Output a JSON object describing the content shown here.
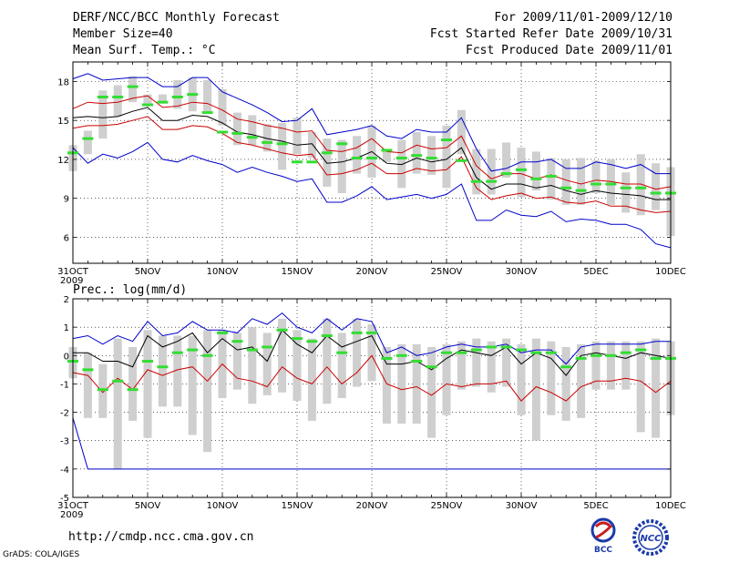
{
  "header": {
    "title": "DERF/NCC/BCC Monthly Forecast",
    "member_size": "Member Size=40",
    "variable": "Mean Surf. Temp.: °C",
    "forecast_period": "For 2009/11/01-2009/12/10",
    "started_refer": "Fcst Started Refer Date 2009/10/31",
    "produced": "Fcst Produced Date 2009/11/01"
  },
  "footer": {
    "url": "http://cmdp.ncc.cma.gov.cn",
    "software": "GrADS: COLA/IGES"
  },
  "logos": {
    "bcc": "BCC",
    "ncc": "NCC"
  },
  "colors": {
    "max_min": "#0000cc",
    "spread": "#cc0000",
    "mean": "#000000",
    "obs": "#33dd33",
    "box": "#cfcfcf"
  },
  "chart_data": [
    {
      "type": "line",
      "title": "Mean Surf. Temp.: °C",
      "x_days": [
        0,
        1,
        2,
        3,
        4,
        5,
        6,
        7,
        8,
        9,
        10,
        11,
        12,
        13,
        14,
        15,
        16,
        17,
        18,
        19,
        20,
        21,
        22,
        23,
        24,
        25,
        26,
        27,
        28,
        29,
        30,
        31,
        32,
        33,
        34,
        35,
        36,
        37,
        38,
        39,
        40
      ],
      "x_tick_labels": [
        "31OCT\n2009",
        "5NOV",
        "10NOV",
        "15NOV",
        "20NOV",
        "25NOV",
        "30NOV",
        "5DEC",
        "10DEC"
      ],
      "x_tick_days": [
        0,
        5,
        10,
        15,
        20,
        25,
        30,
        35,
        40
      ],
      "ylim": [
        4,
        19.5
      ],
      "y_ticks": [
        6,
        9,
        12,
        15,
        18
      ],
      "series": [
        {
          "name": "max",
          "values": [
            18.2,
            18.6,
            18.1,
            18.2,
            18.3,
            18.3,
            17.6,
            17.6,
            18.3,
            18.3,
            17.2,
            16.7,
            16.2,
            15.6,
            14.9,
            15.0,
            15.9,
            13.9,
            14.1,
            14.3,
            14.6,
            13.8,
            13.6,
            14.3,
            14.1,
            14.1,
            15.2,
            12.8,
            11.1,
            11.3,
            11.8,
            11.8,
            12.0,
            11.3,
            11.3,
            11.8,
            11.6,
            11.3,
            11.6,
            10.9,
            10.9
          ]
        },
        {
          "name": "upper",
          "values": [
            15.9,
            16.4,
            16.3,
            16.4,
            16.7,
            16.9,
            16.0,
            16.1,
            16.4,
            16.3,
            15.8,
            15.1,
            14.9,
            14.6,
            14.4,
            14.1,
            14.2,
            12.7,
            12.6,
            12.9,
            13.6,
            12.6,
            12.5,
            13.1,
            12.8,
            12.9,
            13.8,
            11.5,
            10.5,
            10.9,
            10.9,
            10.5,
            10.8,
            10.4,
            10.1,
            10.4,
            10.3,
            10.1,
            10.1,
            9.7,
            9.9
          ]
        },
        {
          "name": "mean",
          "values": [
            15.2,
            15.3,
            15.2,
            15.3,
            15.7,
            16.0,
            15.0,
            15.0,
            15.4,
            15.3,
            14.8,
            14.1,
            13.9,
            13.6,
            13.4,
            13.1,
            13.2,
            11.7,
            11.8,
            12.1,
            12.6,
            11.7,
            11.6,
            12.1,
            11.8,
            12.0,
            12.9,
            10.6,
            9.7,
            10.1,
            10.1,
            9.8,
            10.0,
            9.6,
            9.3,
            9.6,
            9.4,
            9.3,
            9.2,
            8.9,
            8.9
          ]
        },
        {
          "name": "lower",
          "values": [
            14.4,
            14.6,
            14.6,
            14.7,
            15.0,
            15.3,
            14.3,
            14.3,
            14.6,
            14.5,
            14.0,
            13.3,
            13.1,
            12.8,
            12.5,
            12.3,
            12.4,
            10.8,
            10.9,
            11.2,
            11.7,
            10.9,
            10.9,
            11.3,
            11.1,
            11.2,
            12.2,
            9.8,
            8.9,
            9.2,
            9.4,
            9.0,
            9.1,
            8.7,
            8.6,
            8.8,
            8.4,
            8.4,
            8.1,
            7.9,
            8.0
          ]
        },
        {
          "name": "min",
          "values": [
            12.9,
            11.7,
            12.4,
            12.1,
            12.6,
            13.3,
            12.0,
            11.8,
            12.3,
            11.9,
            11.6,
            11.0,
            11.4,
            11.0,
            10.7,
            10.3,
            10.5,
            8.7,
            8.7,
            9.2,
            9.9,
            8.9,
            9.1,
            9.3,
            9.0,
            9.3,
            10.1,
            7.3,
            7.3,
            8.1,
            7.7,
            7.6,
            8.0,
            7.2,
            7.4,
            7.3,
            7.0,
            7.0,
            6.6,
            5.5,
            5.2
          ]
        }
      ],
      "box_low": [
        11.1,
        12.4,
        13.6,
        15.3,
        16.4,
        16.2,
        16.4,
        15.9,
        15.7,
        15.6,
        14.6,
        13.1,
        13.1,
        12.6,
        11.2,
        12.4,
        12.1,
        9.9,
        9.4,
        10.9,
        10.6,
        11.8,
        9.8,
        10.9,
        10.8,
        9.8,
        12.4,
        9.3,
        9.3,
        10.6,
        9.1,
        9.6,
        8.9,
        8.5,
        8.5,
        9.4,
        8.5,
        7.9,
        7.7,
        8.1,
        6.1
      ],
      "box_high": [
        13.1,
        14.2,
        17.3,
        17.7,
        18.4,
        17.0,
        17.0,
        18.1,
        18.3,
        18.1,
        17.4,
        15.6,
        15.4,
        14.7,
        14.8,
        15.2,
        14.1,
        13.6,
        13.5,
        13.8,
        14.6,
        12.7,
        13.5,
        14.1,
        13.8,
        14.6,
        15.8,
        12.8,
        12.8,
        13.3,
        12.9,
        12.6,
        12.1,
        12.0,
        12.1,
        11.9,
        12.0,
        11.0,
        12.4,
        11.7,
        11.4
      ],
      "obs": [
        12.5,
        13.6,
        16.8,
        16.8,
        17.6,
        16.2,
        16.4,
        16.8,
        17.0,
        15.6,
        14.1,
        14.0,
        13.7,
        13.3,
        13.2,
        11.8,
        11.8,
        12.5,
        13.2,
        12.1,
        12.1,
        12.7,
        12.1,
        12.3,
        12.1,
        13.5,
        11.9,
        10.3,
        10.3,
        10.9,
        11.2,
        10.5,
        10.7,
        9.8,
        9.6,
        10.1,
        10.1,
        9.8,
        9.8,
        9.4,
        9.4
      ]
    },
    {
      "type": "line",
      "title": "Prec.: log(mm/d)",
      "x_days": [
        0,
        1,
        2,
        3,
        4,
        5,
        6,
        7,
        8,
        9,
        10,
        11,
        12,
        13,
        14,
        15,
        16,
        17,
        18,
        19,
        20,
        21,
        22,
        23,
        24,
        25,
        26,
        27,
        28,
        29,
        30,
        31,
        32,
        33,
        34,
        35,
        36,
        37,
        38,
        39,
        40
      ],
      "x_tick_labels": [
        "31OCT\n2009",
        "5NOV",
        "10NOV",
        "15NOV",
        "20NOV",
        "25NOV",
        "30NOV",
        "5DEC",
        "10DEC"
      ],
      "x_tick_days": [
        0,
        5,
        10,
        15,
        20,
        25,
        30,
        35,
        40
      ],
      "ylim": [
        -5,
        2
      ],
      "y_ticks": [
        -5,
        -4,
        -3,
        -2,
        -1,
        0,
        1,
        2
      ],
      "series": [
        {
          "name": "max",
          "values": [
            0.6,
            0.7,
            0.4,
            0.7,
            0.5,
            1.2,
            0.7,
            0.8,
            1.2,
            0.9,
            0.9,
            0.8,
            1.3,
            1.1,
            1.5,
            1.0,
            0.8,
            1.3,
            0.9,
            1.3,
            1.2,
            0.1,
            0.3,
            0.0,
            0.1,
            0.3,
            0.4,
            0.3,
            0.3,
            0.4,
            0.1,
            0.2,
            0.2,
            -0.3,
            0.3,
            0.4,
            0.4,
            0.4,
            0.4,
            0.5,
            0.5
          ]
        },
        {
          "name": "mean",
          "values": [
            0.1,
            0.1,
            -0.2,
            -0.2,
            -0.4,
            0.7,
            0.3,
            0.5,
            0.8,
            0.1,
            0.6,
            0.2,
            0.3,
            -0.2,
            0.9,
            0.4,
            0.1,
            0.7,
            0.3,
            0.5,
            0.7,
            -0.3,
            -0.3,
            -0.2,
            -0.5,
            -0.1,
            0.2,
            0.1,
            0.0,
            0.3,
            -0.3,
            0.1,
            -0.1,
            -0.7,
            0.0,
            0.1,
            0.0,
            -0.1,
            0.1,
            0.0,
            -0.1
          ]
        },
        {
          "name": "lower",
          "values": [
            -0.6,
            -0.7,
            -1.3,
            -0.8,
            -1.2,
            -0.5,
            -0.7,
            -0.5,
            -0.4,
            -0.9,
            -0.3,
            -0.8,
            -0.9,
            -1.1,
            -0.4,
            -0.8,
            -1.0,
            -0.4,
            -1.0,
            -0.6,
            0.0,
            -1.0,
            -1.2,
            -1.1,
            -1.4,
            -1.0,
            -1.1,
            -1.0,
            -1.0,
            -0.9,
            -1.6,
            -1.1,
            -1.3,
            -1.6,
            -1.1,
            -0.9,
            -0.9,
            -0.8,
            -0.9,
            -1.3,
            -0.9
          ]
        },
        {
          "name": "min",
          "values": [
            -2.2,
            -4.0,
            -4.0,
            -4.0,
            -4.0,
            -4.0,
            -4.0,
            -4.0,
            -4.0,
            -4.0,
            -4.0,
            -4.0,
            -4.0,
            -4.0,
            -4.0,
            -4.0,
            -4.0,
            -4.0,
            -4.0,
            -4.0,
            -4.0,
            -4.0,
            -4.0,
            -4.0,
            -4.0,
            -4.0,
            -4.0,
            -4.0,
            -4.0,
            -4.0,
            -4.0,
            -4.0,
            -4.0,
            -4.0,
            -4.0,
            -4.0,
            -4.0,
            -4.0,
            -4.0,
            -4.0,
            -4.0
          ]
        }
      ],
      "box_low": [
        -0.8,
        -2.2,
        -2.2,
        -4.0,
        -2.3,
        -2.9,
        -1.8,
        -1.8,
        -2.8,
        -3.4,
        -1.5,
        -1.2,
        -1.7,
        -1.4,
        -1.3,
        -1.6,
        -2.3,
        -1.7,
        -1.5,
        -1.1,
        -0.9,
        -2.4,
        -2.4,
        -2.4,
        -2.9,
        -2.1,
        -1.2,
        -1.1,
        -1.3,
        -1.1,
        -2.1,
        -3.0,
        -2.1,
        -2.3,
        -2.2,
        -1.2,
        -1.2,
        -1.2,
        -2.7,
        -2.9,
        -2.1
      ],
      "box_high": [
        0.3,
        0.1,
        -0.3,
        0.6,
        0.3,
        0.9,
        0.7,
        0.7,
        0.7,
        0.9,
        0.9,
        0.8,
        1.0,
        0.8,
        1.3,
        0.9,
        0.6,
        1.3,
        0.8,
        1.3,
        1.1,
        0.3,
        0.4,
        0.4,
        0.3,
        0.4,
        0.5,
        0.6,
        0.5,
        0.6,
        0.4,
        0.6,
        0.5,
        0.3,
        0.4,
        0.5,
        0.5,
        0.5,
        0.5,
        0.6,
        0.5
      ],
      "obs": [
        -0.2,
        -0.5,
        -1.2,
        -0.9,
        -1.2,
        -0.2,
        -0.4,
        0.1,
        0.2,
        0.0,
        0.8,
        0.5,
        0.2,
        0.3,
        0.9,
        0.6,
        0.5,
        0.7,
        0.1,
        0.8,
        0.8,
        -0.1,
        0.0,
        -0.2,
        -0.4,
        0.1,
        0.1,
        0.2,
        0.3,
        0.3,
        0.2,
        0.1,
        0.1,
        -0.4,
        -0.1,
        0.0,
        0.0,
        0.1,
        0.2,
        -0.1,
        -0.1
      ]
    }
  ]
}
